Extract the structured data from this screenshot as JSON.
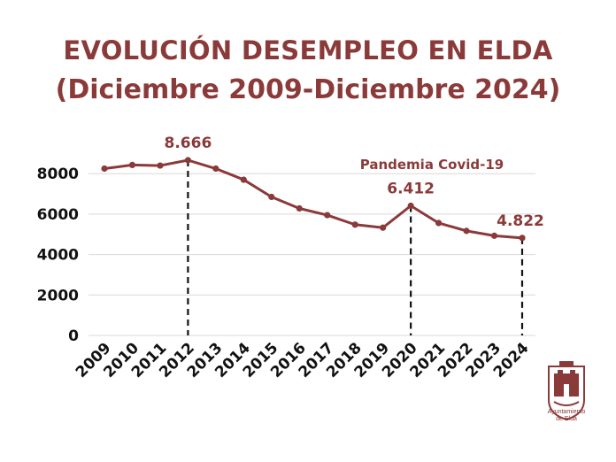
{
  "chart_data": {
    "type": "line",
    "title": "EVOLUCIÓN DESEMPLEO EN ELDA",
    "subtitle": "(Diciembre 2009-Diciembre 2024)",
    "categories": [
      "2009",
      "2010",
      "2011",
      "2012",
      "2013",
      "2014",
      "2015",
      "2016",
      "2017",
      "2018",
      "2019",
      "2020",
      "2021",
      "2022",
      "2023",
      "2024"
    ],
    "series": [
      {
        "values": [
          8250,
          8430,
          8400,
          8666,
          8250,
          7700,
          6850,
          6280,
          5950,
          5480,
          5330,
          6412,
          5560,
          5170,
          4930,
          4822
        ]
      }
    ],
    "ylim": [
      0,
      8666
    ],
    "yticks": [
      "0",
      "2000",
      "4000",
      "6000",
      "8000"
    ],
    "grid": true,
    "data_labels": [
      {
        "index": 3,
        "text": "8.666"
      },
      {
        "index": 11,
        "text": "6.412"
      },
      {
        "index": 15,
        "text": "4.822"
      }
    ],
    "annotation": "Pandemia Covid-19",
    "color": "#8b3a3a"
  },
  "logo": {
    "text_line1": "Ayuntamiento",
    "text_line2": "de Elda"
  }
}
